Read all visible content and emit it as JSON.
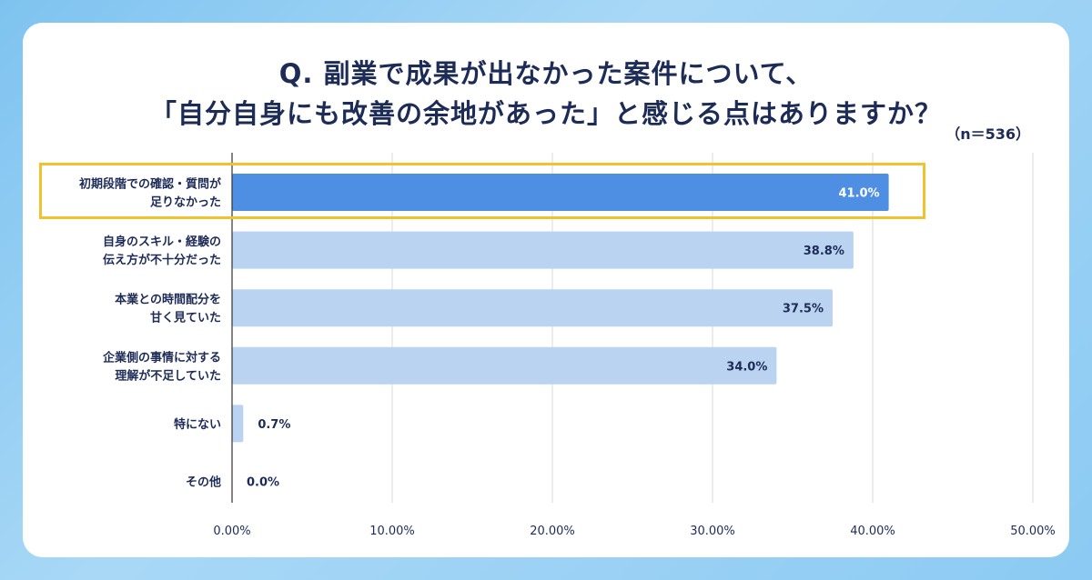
{
  "title_line1": "Q. 副業で成果が出なかった案件について、",
  "title_line2": "「自分自身にも改善の余地があった」と感じる点はありますか？",
  "sample_size": "（n＝536）",
  "chart_data": {
    "type": "bar",
    "orientation": "horizontal",
    "categories": [
      [
        "初期段階での確認・質問が",
        "足りなかった"
      ],
      [
        "自身のスキル・経験の",
        "伝え方が不十分だった"
      ],
      [
        "本業との時間配分を",
        "甘く見ていた"
      ],
      [
        "企業側の事情に対する",
        "理解が不足していた"
      ],
      [
        "特にない"
      ],
      [
        "その他"
      ]
    ],
    "values": [
      41.0,
      38.8,
      37.5,
      34.0,
      0.7,
      0.0
    ],
    "value_labels": [
      "41.0%",
      "38.8%",
      "37.5%",
      "34.0%",
      "0.7%",
      "0.0%"
    ],
    "xlim": [
      0,
      50
    ],
    "xticks": [
      0,
      10,
      20,
      30,
      40,
      50
    ],
    "xtick_labels": [
      "0.00%",
      "10.00%",
      "20.00%",
      "30.00%",
      "40.00%",
      "50.00%"
    ],
    "highlighted_index": 0,
    "colors": {
      "highlight_bar": "#4f8fe3",
      "bar": "#b9d3f1",
      "value_label_inside": "#ffffff",
      "value_label": "#1d2b57",
      "highlight_box": "#f2c12e"
    },
    "grid": true
  }
}
